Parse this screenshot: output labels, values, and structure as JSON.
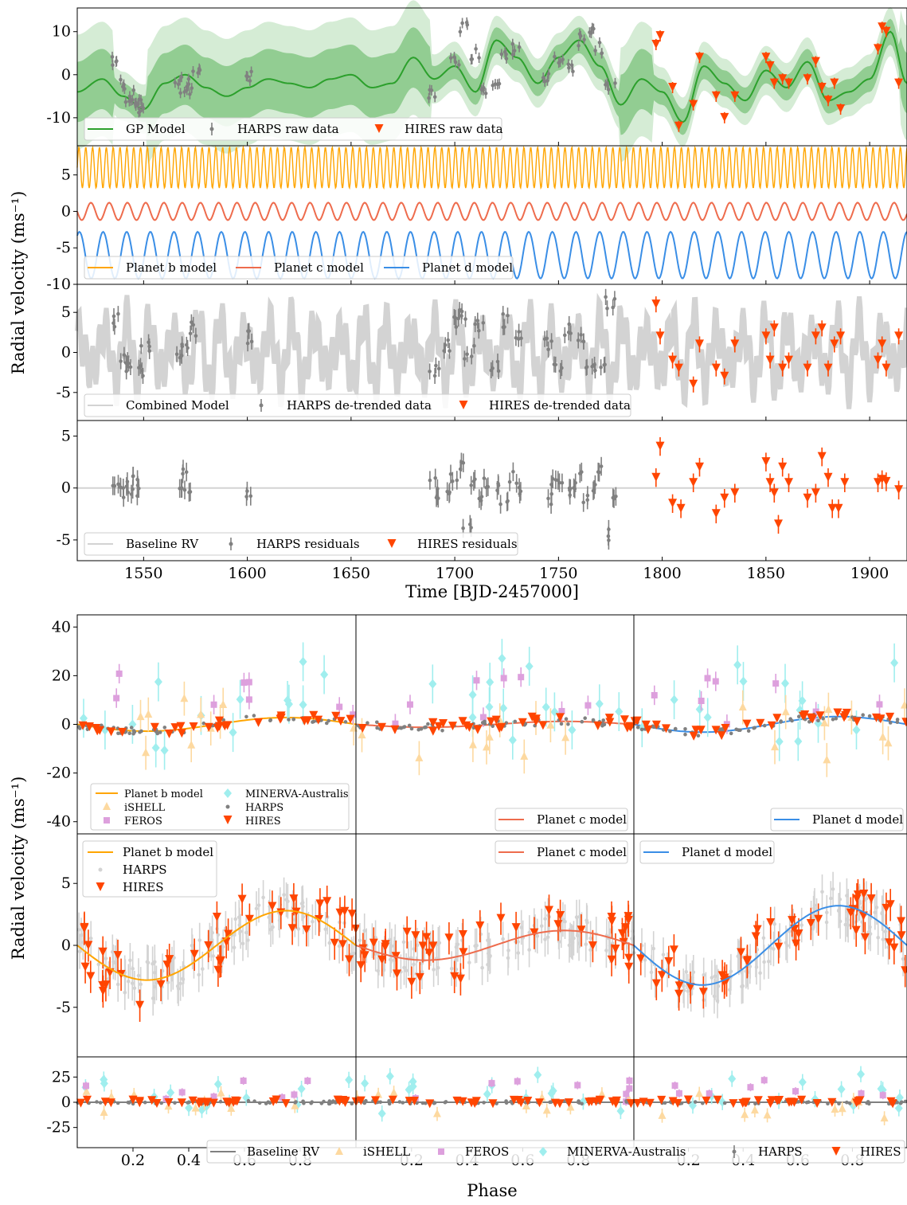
{
  "chart_data": [
    {
      "type": "line",
      "panel": "top-1",
      "xlim": [
        1518,
        1918
      ],
      "ylim": [
        -16.5,
        15.5
      ],
      "yticks": [
        -10,
        0,
        10
      ],
      "legend": [
        "GP Model",
        "HARPS raw data",
        "HIRES raw data"
      ],
      "legend_placement": "bottom-left",
      "series": [
        {
          "name": "GP Model",
          "x": [
            1518,
            1530,
            1540,
            1550,
            1560,
            1570,
            1580,
            1590,
            1600,
            1610,
            1620,
            1630,
            1640,
            1650,
            1660,
            1670,
            1680,
            1690,
            1700,
            1710,
            1720,
            1730,
            1740,
            1750,
            1760,
            1770,
            1780,
            1790,
            1800,
            1810,
            1820,
            1830,
            1840,
            1850,
            1860,
            1870,
            1880,
            1890,
            1900,
            1910,
            1918
          ],
          "y": [
            -4,
            -1,
            -5,
            -8,
            -2,
            0,
            -3,
            -5,
            -3,
            -1,
            -2,
            -3,
            -1,
            0,
            -3,
            -2,
            4,
            -1,
            2,
            -4,
            8,
            4,
            -2,
            4,
            8,
            2,
            -7,
            -1,
            -4,
            -11,
            2,
            -2,
            -6,
            1,
            -3,
            3,
            -6,
            -4,
            -1,
            10,
            -2
          ]
        },
        {
          "name": "HARPS raw data",
          "x": [
            1537,
            1540,
            1543,
            1545,
            1548,
            1550,
            1567,
            1570,
            1572,
            1575,
            1601,
            1690,
            1700,
            1705,
            1710,
            1715,
            1720,
            1725,
            1730,
            1745,
            1750,
            1755,
            1760,
            1765,
            1770,
            1775
          ],
          "y": [
            3,
            -2,
            -5,
            -6,
            -8,
            -7,
            -1,
            -4,
            -2,
            0,
            0,
            -5,
            3,
            11,
            5,
            -3,
            -1,
            4,
            6,
            -1,
            3,
            1,
            8,
            10,
            6,
            -2
          ]
        },
        {
          "name": "HIRES raw data",
          "x": [
            1797,
            1799,
            1805,
            1808,
            1815,
            1818,
            1826,
            1830,
            1835,
            1850,
            1852,
            1854,
            1858,
            1861,
            1870,
            1874,
            1877,
            1880,
            1883,
            1886,
            1904,
            1906,
            1908,
            1914
          ],
          "y": [
            7,
            9,
            -3,
            -12,
            -7,
            4,
            -5,
            -10,
            -5,
            4,
            2,
            -2,
            -1,
            -2,
            -1,
            3,
            -3,
            -6,
            -2,
            -8,
            6,
            11,
            10,
            -2
          ]
        }
      ]
    },
    {
      "type": "line",
      "panel": "top-2",
      "xlim": [
        1518,
        1918
      ],
      "ylim": [
        -10,
        9
      ],
      "yticks": [
        -10,
        -5,
        0,
        5
      ],
      "legend": [
        "Planet b model",
        "Planet c model",
        "Planet d model"
      ],
      "legend_placement": "bottom-left",
      "series": [
        {
          "name": "Planet b model",
          "center": 6,
          "amplitude": 2.8,
          "period_days": 3.3
        },
        {
          "name": "Planet c model",
          "center": 0,
          "amplitude": 1.2,
          "period_days": 8.8
        },
        {
          "name": "Planet d model",
          "center": -6,
          "amplitude": 3.2,
          "period_days": 11.4
        }
      ]
    },
    {
      "type": "line",
      "panel": "top-3",
      "xlim": [
        1518,
        1918
      ],
      "ylim": [
        -8.5,
        8.5
      ],
      "yticks": [
        -5,
        0,
        5
      ],
      "legend": [
        "Combined Model",
        "HARPS de-trended data",
        "HIRES de-trended data"
      ],
      "legend_placement": "bottom-left",
      "series": [
        {
          "name": "HARPS de-trended data",
          "x": [
            1537,
            1540,
            1544,
            1548,
            1551,
            1567,
            1570,
            1573,
            1601,
            1690,
            1695,
            1700,
            1703,
            1707,
            1712,
            1720,
            1725,
            1730,
            1745,
            1750,
            1755,
            1760,
            1765,
            1770,
            1775
          ],
          "y": [
            4,
            -1,
            -2,
            -2,
            1,
            -1,
            1,
            3,
            2,
            -2,
            1,
            4,
            5,
            0,
            3,
            -2,
            4,
            2,
            1,
            -2,
            3,
            2,
            -1,
            -2,
            6
          ]
        },
        {
          "name": "HIRES de-trended data",
          "x": [
            1797,
            1799,
            1805,
            1808,
            1815,
            1818,
            1826,
            1830,
            1835,
            1850,
            1852,
            1854,
            1858,
            1861,
            1870,
            1874,
            1877,
            1880,
            1883,
            1886,
            1904,
            1906,
            1908,
            1914
          ],
          "y": [
            6,
            2,
            -1,
            -2,
            -4,
            1,
            -2,
            -3,
            1,
            2,
            -1,
            3,
            -2,
            -1,
            -2,
            2,
            3,
            -2,
            1,
            2,
            -1,
            1,
            -2,
            2
          ]
        }
      ]
    },
    {
      "type": "scatter",
      "panel": "top-4",
      "xlim": [
        1518,
        1918
      ],
      "ylim": [
        -7,
        6.5
      ],
      "xticks": [
        1550,
        1600,
        1650,
        1700,
        1750,
        1800,
        1850,
        1900
      ],
      "yticks": [
        -5,
        0,
        5
      ],
      "xlabel": "Time [BJD-2457000]",
      "legend": [
        "Baseline RV",
        "HARPS residuals",
        "HIRES residuals"
      ],
      "legend_placement": "bottom-left",
      "series": [
        {
          "name": "HARPS residuals",
          "x": [
            1537,
            1539,
            1541,
            1543,
            1546,
            1548,
            1567,
            1569,
            1571,
            1601,
            1690,
            1693,
            1697,
            1700,
            1703,
            1706,
            1708,
            1712,
            1716,
            1720,
            1724,
            1728,
            1731,
            1745,
            1748,
            1751,
            1754,
            1757,
            1760,
            1763,
            1766,
            1770,
            1774,
            1776
          ],
          "y": [
            0.5,
            -0.5,
            0,
            1,
            -0.5,
            0.3,
            -0.5,
            1.5,
            0,
            -0.3,
            0.5,
            -0.5,
            0,
            1,
            2,
            -3.5,
            0.5,
            -1,
            0.5,
            0,
            -1,
            1,
            0,
            -1,
            0.5,
            1,
            -0.5,
            0,
            1,
            -1,
            0.3,
            1.5,
            -4.5,
            -1
          ]
        },
        {
          "name": "HIRES residuals",
          "x": [
            1797,
            1799,
            1805,
            1809,
            1815,
            1818,
            1826,
            1830,
            1835,
            1850,
            1852,
            1854,
            1856,
            1858,
            1861,
            1870,
            1874,
            1877,
            1880,
            1882,
            1885,
            1888,
            1904,
            1906,
            1908,
            1914
          ],
          "y": [
            1,
            4,
            -1.5,
            -2,
            0.5,
            2,
            -2.5,
            -1,
            -0.5,
            2.5,
            0.5,
            -0.5,
            -3.5,
            2,
            0.5,
            -1,
            -0.5,
            3,
            1,
            -2,
            -2,
            0.5,
            0.5,
            0.8,
            0.6,
            -0.2
          ]
        }
      ]
    },
    {
      "type": "scatter",
      "panel": "phase-row-1",
      "xlim": [
        0,
        1
      ],
      "ylim": [
        -45,
        45
      ],
      "yticks": [
        -40,
        -20,
        0,
        20,
        40
      ],
      "legends": [
        [
          "Planet b model",
          "MINERVA-Australis",
          "iSHELL",
          "HARPS",
          "FEROS",
          "HIRES"
        ],
        [
          "Planet c model"
        ],
        [
          "Planet d model"
        ]
      ],
      "instruments": [
        "iSHELL",
        "FEROS",
        "MINERVA-Australis",
        "HARPS",
        "HIRES"
      ],
      "colors": {
        "planet_b": "#ffa500",
        "planet_c": "#ee6c4d",
        "planet_d": "#3a8ee6",
        "ishell": "#fdd9a0",
        "feros": "#dda0dd",
        "minerva": "#a0eeee",
        "harps": "#808080",
        "hires": "#ff4500",
        "gp": "#2ca02c"
      }
    },
    {
      "type": "scatter",
      "panel": "phase-row-2",
      "xlim": [
        0,
        1
      ],
      "ylim": [
        -9,
        9
      ],
      "yticks": [
        -5,
        0,
        5
      ],
      "legends": [
        [
          "Planet b model",
          "HARPS",
          "HIRES"
        ],
        [
          "Planet c model"
        ],
        [
          "Planet d model"
        ]
      ],
      "amplitudes": {
        "planet_b": 2.8,
        "planet_c": 1.2,
        "planet_d": 3.2
      }
    },
    {
      "type": "scatter",
      "panel": "phase-row-3",
      "xlim": [
        0,
        1
      ],
      "ylim": [
        -45,
        45
      ],
      "xticks": [
        0.2,
        0.4,
        0.6,
        0.8
      ],
      "yticks": [
        -25,
        0,
        25
      ],
      "xlabel": "Phase",
      "legend": [
        "Baseline RV",
        "iSHELL",
        "FEROS",
        "MINERVA-Australis",
        "HARPS",
        "HIRES"
      ]
    }
  ],
  "labels": {
    "ylabel_top": "Radial velocity (ms⁻¹)",
    "ylabel_bottom": "Radial velocity (ms⁻¹)"
  }
}
